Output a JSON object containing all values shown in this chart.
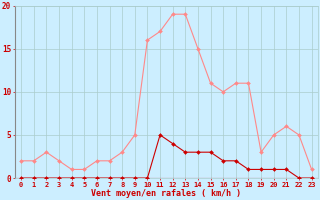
{
  "hours": [
    0,
    1,
    2,
    3,
    4,
    5,
    6,
    7,
    8,
    9,
    10,
    11,
    12,
    13,
    14,
    15,
    16,
    17,
    18,
    19,
    20,
    21,
    22,
    23
  ],
  "wind_avg": [
    0,
    0,
    0,
    0,
    0,
    0,
    0,
    0,
    0,
    0,
    0,
    5,
    4,
    3,
    3,
    3,
    2,
    2,
    1,
    1,
    1,
    1,
    0,
    0
  ],
  "wind_gust": [
    2,
    2,
    3,
    2,
    1,
    1,
    2,
    2,
    3,
    5,
    16,
    17,
    19,
    19,
    15,
    11,
    10,
    11,
    11,
    3,
    5,
    6,
    5,
    1
  ],
  "line_avg_color": "#cc0000",
  "line_gust_color": "#ff8888",
  "bg_color": "#cceeff",
  "grid_color": "#aacccc",
  "xlabel": "Vent moyen/en rafales ( km/h )",
  "xlabel_color": "#cc0000",
  "tick_color": "#cc0000",
  "ylim": [
    0,
    20
  ],
  "yticks": [
    0,
    5,
    10,
    15,
    20
  ],
  "figsize": [
    3.2,
    2.0
  ],
  "dpi": 100
}
